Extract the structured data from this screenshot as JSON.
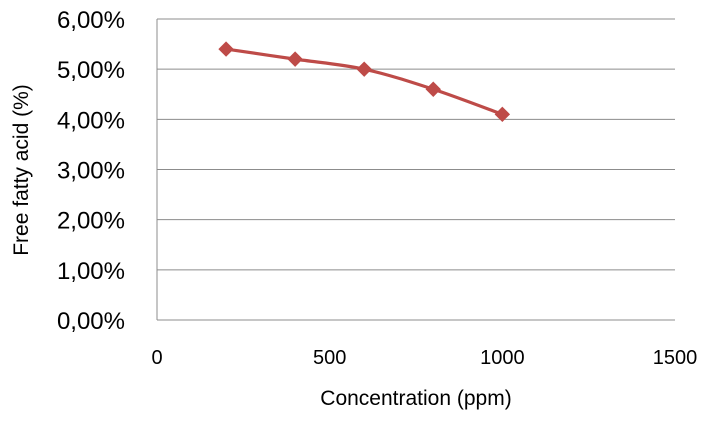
{
  "chart_data": {
    "type": "scatter",
    "xlabel": "Concentration (ppm)",
    "ylabel": "Free fatty acid (%)",
    "xlim": [
      0,
      1500
    ],
    "ylim": [
      0,
      6
    ],
    "x_ticks": [
      0,
      500,
      1000,
      1500
    ],
    "x_tick_labels": [
      "0",
      "500",
      "1000",
      "1500"
    ],
    "y_ticks": [
      0,
      1,
      2,
      3,
      4,
      5,
      6
    ],
    "y_tick_labels": [
      "0,00%",
      "1,00%",
      "2,00%",
      "3,00%",
      "4,00%",
      "5,00%",
      "6,00%"
    ],
    "grid": "horizontal",
    "legend": "none",
    "series": [
      {
        "x": [
          200,
          400,
          600,
          800,
          1000
        ],
        "y": [
          5.4,
          5.2,
          5.0,
          4.6,
          4.1
        ],
        "color": "#be4b48",
        "marker": "diamond",
        "line": "smooth"
      }
    ]
  }
}
